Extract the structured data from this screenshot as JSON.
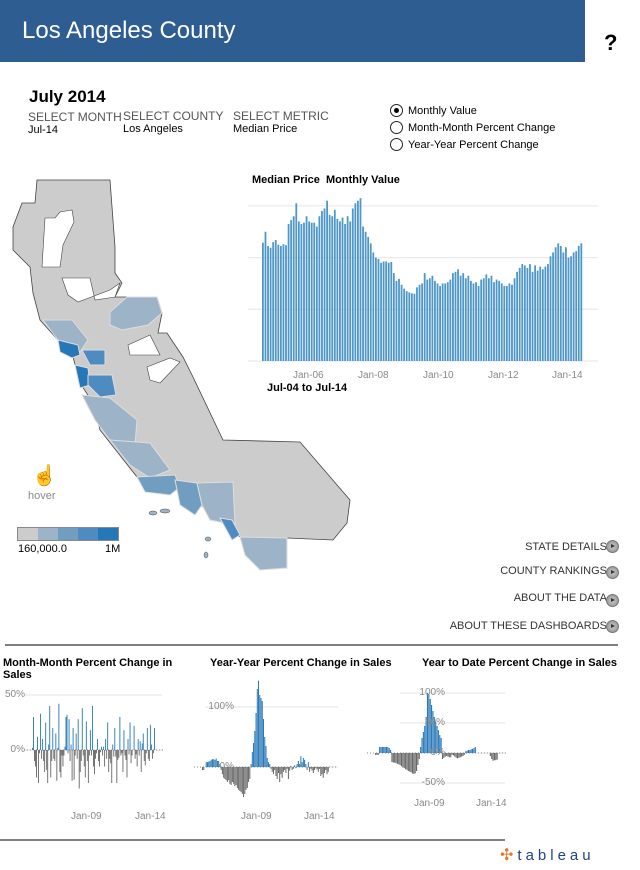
{
  "header": {
    "title": "Los Angeles County",
    "help": "?"
  },
  "filters": {
    "month_heading": "July 2014",
    "select_month": {
      "label": "SELECT MONTH",
      "value": "Jul-14"
    },
    "select_county": {
      "label": "SELECT COUNTY",
      "value": "Los Angeles"
    },
    "select_metric": {
      "label": "SELECT METRIC",
      "value": "Median Price"
    }
  },
  "view_options": [
    {
      "label": "Monthly Value",
      "selected": true
    },
    {
      "label": "Month-Month Percent Change",
      "selected": false
    },
    {
      "label": "Year-Year Percent Change",
      "selected": false
    }
  ],
  "map": {
    "hover_label": "hover",
    "legend": {
      "min_label": "160,000.0",
      "max_label": "1M",
      "colors": [
        "#CCCCCC",
        "#9DB4C8",
        "#719EC0",
        "#4E8BC0",
        "#2677B8"
      ]
    }
  },
  "nav_links": [
    "STATE DETAILS",
    "COUNTY RANKINGS",
    "ABOUT THE DATA",
    "ABOUT THESE DASHBOARDS"
  ],
  "colors": {
    "header": "#2E5D92",
    "bar": "#4F97C9",
    "positive": "#2677B8",
    "negative": "#666666"
  },
  "brand": {
    "logo_text": "tableau"
  },
  "chart_data": [
    {
      "type": "bar",
      "title": "Median Price  Monthly Value",
      "subtitle": "Jul-04 to Jul-14",
      "x_start": "Jul-04",
      "x_end": "Jul-14",
      "x_ticks": [
        "Jan-06",
        "Jan-08",
        "Jan-10",
        "Jan-12",
        "Jan-14"
      ],
      "ylim": [
        0,
        620000
      ],
      "grid": true,
      "values": [
        458000,
        500000,
        445000,
        438000,
        460000,
        468000,
        450000,
        445000,
        452000,
        448000,
        530000,
        545000,
        560000,
        610000,
        540000,
        530000,
        535000,
        560000,
        540000,
        535000,
        535000,
        520000,
        560000,
        580000,
        590000,
        620000,
        565000,
        560000,
        585000,
        550000,
        540000,
        555000,
        530000,
        560000,
        540000,
        590000,
        610000,
        620000,
        630000,
        520000,
        500000,
        480000,
        455000,
        420000,
        400000,
        395000,
        380000,
        385000,
        385000,
        380000,
        383000,
        340000,
        310000,
        318000,
        295000,
        280000,
        270000,
        265000,
        262000,
        260000,
        285000,
        295000,
        300000,
        340000,
        315000,
        320000,
        330000,
        310000,
        300000,
        290000,
        300000,
        300000,
        305000,
        315000,
        340000,
        345000,
        355000,
        330000,
        340000,
        320000,
        330000,
        310000,
        300000,
        305000,
        290000,
        315000,
        320000,
        335000,
        320000,
        330000,
        305000,
        315000,
        310000,
        300000,
        290000,
        290000,
        300000,
        295000,
        320000,
        345000,
        360000,
        375000,
        370000,
        360000,
        375000,
        345000,
        370000,
        350000,
        365000,
        355000,
        365000,
        375000,
        405000,
        420000,
        440000,
        455000,
        445000,
        420000,
        440000,
        400000,
        405000,
        420000,
        425000,
        445000,
        455000
      ]
    },
    {
      "type": "bar",
      "title": "Month-Month Percent Change in Sales",
      "x_ticks": [
        "Jan-09",
        "Jan-14"
      ],
      "y_ticks": [
        "50%",
        "0%"
      ],
      "ylim": [
        -40,
        55
      ],
      "values": [
        2,
        30,
        -10,
        -15,
        -25,
        12,
        -30,
        -3,
        33,
        -8,
        10,
        -10,
        -20,
        25,
        -18,
        -30,
        5,
        40,
        -25,
        -10,
        20,
        -8,
        -10,
        15,
        -28,
        2,
        42,
        -20,
        -25,
        -5,
        -15,
        -5,
        3,
        30,
        32,
        -3,
        28,
        -10,
        5,
        -28,
        20,
        -27,
        -5,
        15,
        -8,
        28,
        -35,
        -20,
        -10,
        38,
        -5,
        -15,
        -25,
        26,
        -10,
        -30,
        -5,
        18,
        -5,
        40,
        -15,
        -22,
        -8,
        -3,
        10,
        -10,
        -15,
        -2,
        3,
        -5,
        3,
        -15,
        10,
        -8,
        25,
        -20,
        -8,
        -12,
        -30,
        5,
        -6,
        20,
        -6,
        -30,
        -9,
        -7,
        30,
        -5,
        -3,
        -20,
        18,
        -5,
        -9,
        -25,
        10,
        -4,
        25,
        -12,
        -5,
        0,
        22,
        -8,
        -4,
        -15,
        10,
        -5,
        8,
        -20,
        6,
        15,
        -10,
        -14,
        -3,
        20,
        -8,
        -10,
        23,
        5,
        -8,
        -3,
        20
      ]
    },
    {
      "type": "bar",
      "title": "Year-Year Percent Change in Sales",
      "x_ticks": [
        "Jan-09",
        "Jan-14"
      ],
      "y_ticks": [
        "100%",
        "0%"
      ],
      "ylim": [
        -55,
        150
      ],
      "values": [
        -5,
        -5,
        0,
        8,
        8,
        9,
        10,
        12,
        13,
        13,
        12,
        14,
        10,
        10,
        5,
        -5,
        -12,
        -18,
        -20,
        -22,
        -25,
        -22,
        -28,
        -30,
        -25,
        -28,
        -32,
        -30,
        -35,
        -38,
        -40,
        -42,
        -45,
        -50,
        -45,
        -38,
        -35,
        -25,
        -20,
        5,
        25,
        40,
        60,
        90,
        130,
        144,
        120,
        115,
        110,
        80,
        50,
        35,
        15,
        8,
        5,
        -3,
        -8,
        -12,
        -5,
        -15,
        -20,
        -10,
        -25,
        -12,
        -18,
        -8,
        -5,
        -10,
        -3,
        -20,
        -6,
        2,
        -5,
        -3,
        3,
        -2,
        5,
        10,
        5,
        18,
        8,
        15,
        12,
        5,
        -5,
        8,
        -8,
        -3,
        -6,
        -10,
        -5,
        -2,
        -4,
        -8,
        -3,
        -15,
        -12,
        -18,
        -10,
        -5,
        -12,
        -8
      ]
    },
    {
      "type": "bar",
      "title": "Year to Date Percent Change in Sales",
      "x_ticks": [
        "Jan-09",
        "Jan-14"
      ],
      "y_ticks": [
        "100%",
        "50%",
        "0%",
        "-50%"
      ],
      "ylim": [
        -55,
        105
      ],
      "values": [
        -3,
        -3,
        -3,
        10,
        10,
        10,
        10,
        10,
        10,
        10,
        8,
        5,
        -15,
        -16,
        -16,
        -17,
        -18,
        -19,
        -20,
        -22,
        -24,
        -25,
        -27,
        -28,
        -30,
        -31,
        -32,
        -34,
        -35,
        -34,
        -30,
        -20,
        -10,
        10,
        25,
        35,
        45,
        60,
        100,
        98,
        90,
        80,
        70,
        60,
        52,
        45,
        38,
        30,
        25,
        -10,
        -8,
        -6,
        -5,
        -6,
        -7,
        -7,
        -3,
        -4,
        -6,
        -8,
        -9,
        -8,
        -7,
        -6,
        -5,
        -3,
        3,
        4,
        5,
        5,
        6,
        7,
        8,
        10,
        0,
        0,
        0,
        0,
        0,
        0,
        0,
        0,
        0,
        0,
        -5,
        -10,
        -13,
        -12,
        -12,
        -11
      ]
    }
  ]
}
